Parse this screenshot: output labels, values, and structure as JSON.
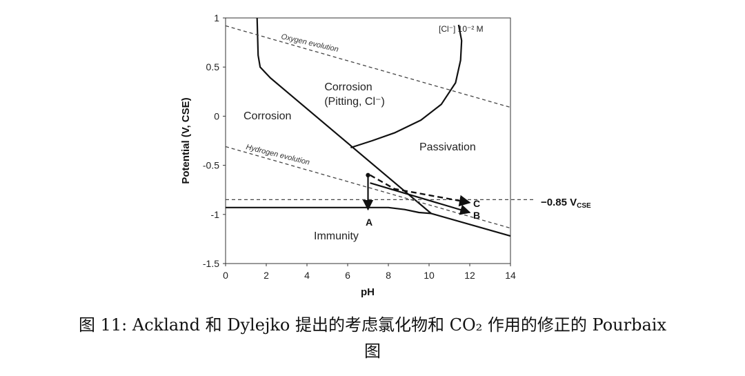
{
  "caption": {
    "line1": "图 11: Ackland 和 Dylejko 提出的考虑氯化物和 CO₂ 作用的修正的 Pourbaix",
    "line2": "图"
  },
  "chart_data": {
    "type": "line",
    "xlabel": "pH",
    "ylabel": "Potential (V, CSE)",
    "xlim": [
      0,
      14
    ],
    "ylim": [
      -1.5,
      1
    ],
    "xticks": [
      "0",
      "2",
      "4",
      "6",
      "8",
      "10",
      "12",
      "14"
    ],
    "yticks": [
      "1",
      "0.5",
      "0",
      "-0.5",
      "-1",
      "-1.5"
    ],
    "annotations": {
      "chloride": "[Cl⁻] 10⁻² M",
      "oxygen": "Oxygen evolution",
      "hydrogen": "Hydrogen evolution",
      "corrosion": "Corrosion",
      "pitting_1": "Corrosion",
      "pitting_2": "(Pitting, Cl⁻)",
      "passivation": "Passivation",
      "immunity": "Immunity",
      "ref_main": "−0.85 V",
      "ref_sub": "CSE",
      "A": "A",
      "B": "B",
      "C": "C"
    },
    "series": [
      {
        "style": "solid",
        "points": [
          [
            1.55,
            1.0
          ],
          [
            1.6,
            0.62
          ],
          [
            1.7,
            0.5
          ],
          [
            2.2,
            0.39
          ],
          [
            10.1,
            -0.99
          ],
          [
            14,
            -1.22
          ]
        ]
      },
      {
        "style": "solid",
        "points": [
          [
            0,
            -0.93
          ],
          [
            8.0,
            -0.93
          ],
          [
            8.8,
            -0.95
          ],
          [
            9.5,
            -0.98
          ],
          [
            10.1,
            -0.99
          ]
        ]
      },
      {
        "style": "solid",
        "points": [
          [
            6.15,
            -0.32
          ],
          [
            7.2,
            -0.25
          ],
          [
            8.3,
            -0.17
          ],
          [
            9.6,
            -0.04
          ],
          [
            10.6,
            0.12
          ],
          [
            11.3,
            0.34
          ],
          [
            11.55,
            0.57
          ],
          [
            11.6,
            0.77
          ],
          [
            11.45,
            0.93
          ]
        ]
      },
      {
        "style": "dashed",
        "points": [
          [
            0,
            0.92
          ],
          [
            14,
            0.09
          ]
        ]
      },
      {
        "style": "dashed",
        "points": [
          [
            0,
            -0.31
          ],
          [
            14,
            -1.14
          ]
        ]
      },
      {
        "style": "dashed",
        "points": [
          [
            0,
            -0.85
          ],
          [
            15.2,
            -0.85
          ]
        ]
      },
      {
        "style": "arrow",
        "points": [
          [
            7.0,
            -0.6
          ],
          [
            7.0,
            -0.95
          ]
        ]
      },
      {
        "style": "arrow",
        "points": [
          [
            7.1,
            -0.68
          ],
          [
            12.0,
            -0.98
          ]
        ]
      },
      {
        "style": "dashed-arrow",
        "points": [
          [
            7.1,
            -0.6
          ],
          [
            8.3,
            -0.74
          ],
          [
            12.0,
            -0.88
          ]
        ]
      }
    ],
    "points": [
      {
        "label": "A",
        "x": 7.0,
        "y": -0.95
      },
      {
        "label": "B",
        "x": 12.0,
        "y": -0.98
      },
      {
        "label": "C",
        "x": 12.0,
        "y": -0.88
      }
    ]
  }
}
